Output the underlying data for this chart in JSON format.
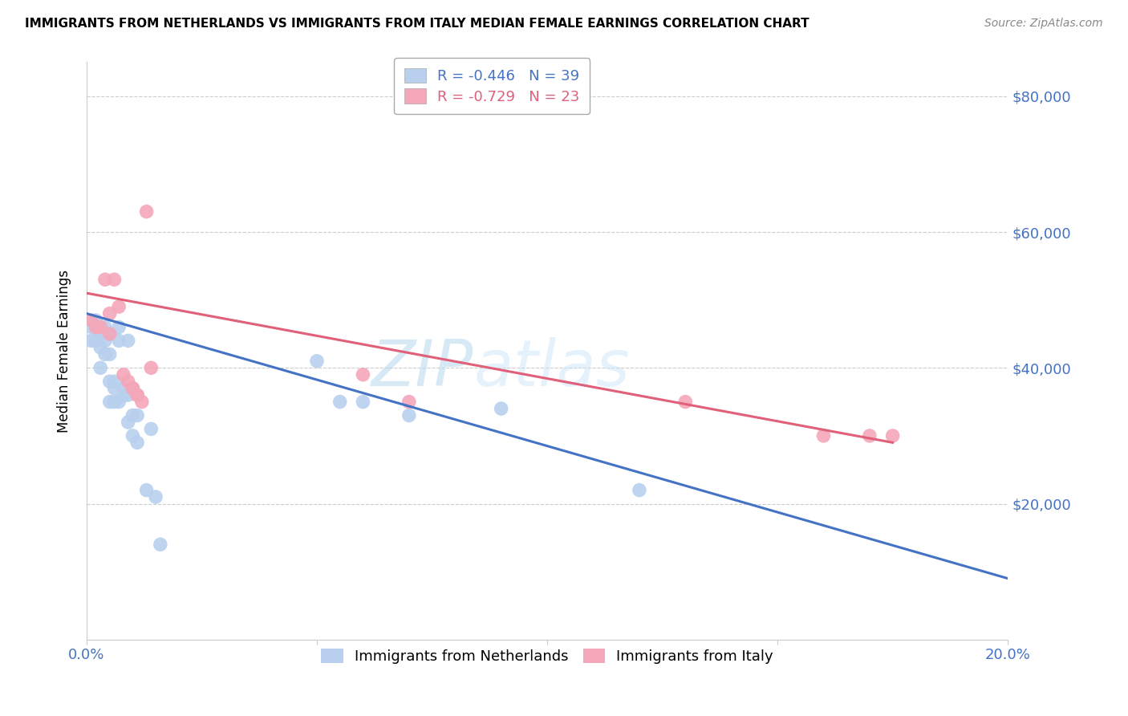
{
  "title": "IMMIGRANTS FROM NETHERLANDS VS IMMIGRANTS FROM ITALY MEDIAN FEMALE EARNINGS CORRELATION CHART",
  "source": "Source: ZipAtlas.com",
  "ylabel": "Median Female Earnings",
  "xlim": [
    0.0,
    0.2
  ],
  "ylim": [
    0,
    85000
  ],
  "yticks": [
    0,
    20000,
    40000,
    60000,
    80000
  ],
  "xticks": [
    0.0,
    0.05,
    0.1,
    0.15,
    0.2
  ],
  "xtick_labels": [
    "0.0%",
    "",
    "",
    "",
    "20.0%"
  ],
  "ytick_labels": [
    "",
    "$20,000",
    "$40,000",
    "$60,000",
    "$80,000"
  ],
  "background_color": "#ffffff",
  "grid_color": "#cccccc",
  "watermark": "ZIPatlas",
  "series": [
    {
      "name": "Immigrants from Netherlands",
      "R": "-0.446",
      "N": "39",
      "color": "#b8d0ed",
      "line_color": "#4472c4",
      "x": [
        0.001,
        0.001,
        0.002,
        0.002,
        0.003,
        0.003,
        0.003,
        0.004,
        0.004,
        0.004,
        0.005,
        0.005,
        0.005,
        0.005,
        0.006,
        0.006,
        0.006,
        0.007,
        0.007,
        0.007,
        0.008,
        0.008,
        0.009,
        0.009,
        0.009,
        0.01,
        0.01,
        0.011,
        0.011,
        0.013,
        0.014,
        0.015,
        0.016,
        0.05,
        0.055,
        0.06,
        0.07,
        0.09,
        0.12
      ],
      "y": [
        46000,
        44000,
        47000,
        44000,
        45000,
        43000,
        40000,
        46000,
        44000,
        42000,
        45000,
        42000,
        38000,
        35000,
        38000,
        37000,
        35000,
        46000,
        44000,
        35000,
        37000,
        36000,
        44000,
        36000,
        32000,
        33000,
        30000,
        33000,
        29000,
        22000,
        31000,
        21000,
        14000,
        41000,
        35000,
        35000,
        33000,
        34000,
        22000
      ],
      "trend_x": [
        0.0,
        0.2
      ],
      "trend_y": [
        48000,
        9000
      ]
    },
    {
      "name": "Immigrants from Italy",
      "R": "-0.729",
      "N": "23",
      "color": "#f4a7b9",
      "line_color": "#e0607a",
      "x": [
        0.001,
        0.002,
        0.003,
        0.004,
        0.005,
        0.005,
        0.006,
        0.007,
        0.008,
        0.009,
        0.01,
        0.01,
        0.011,
        0.011,
        0.012,
        0.013,
        0.014,
        0.06,
        0.07,
        0.13,
        0.16,
        0.17,
        0.175
      ],
      "y": [
        47000,
        46000,
        46000,
        53000,
        48000,
        45000,
        53000,
        49000,
        39000,
        38000,
        37000,
        37000,
        36000,
        36000,
        35000,
        63000,
        40000,
        39000,
        35000,
        35000,
        30000,
        30000,
        30000
      ],
      "trend_x": [
        0.0,
        0.175
      ],
      "trend_y": [
        51000,
        29000
      ]
    }
  ]
}
